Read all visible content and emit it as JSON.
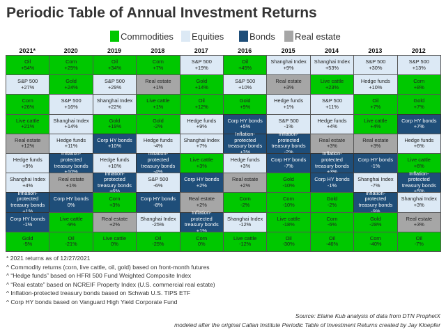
{
  "chart_data": {
    "type": "table",
    "title": "Periodic Table of Annual Investment Returns",
    "legend": [
      {
        "key": "commodities",
        "label": "Commodities",
        "color": "#00c800"
      },
      {
        "key": "equities",
        "label": "Equities",
        "color": "#dce9f5"
      },
      {
        "key": "bonds",
        "label": "Bonds",
        "color": "#1f4e79"
      },
      {
        "key": "realestate",
        "label": "Real estate",
        "color": "#a6a6a6"
      }
    ],
    "asset_category": {
      "Oil": "commodities",
      "Corn": "commodities",
      "Gold": "commodities",
      "Live cattle": "commodities",
      "S&P 500": "equities",
      "Shanghai Index": "equities",
      "Hedge funds": "equities",
      "Corp HY bonds": "bonds",
      "Inflation-protected treasury bonds": "bonds",
      "Real estate": "realestate"
    },
    "columns": [
      {
        "year": "2021*",
        "cells": [
          [
            "Oil",
            "+54%"
          ],
          [
            "S&P 500",
            "+27%"
          ],
          [
            "Corn",
            "+26%"
          ],
          [
            "Live cattle",
            "+21%"
          ],
          [
            "Real estate",
            "+12%"
          ],
          [
            "Hedge funds",
            "+9%"
          ],
          [
            "Shanghai Index",
            "+4%"
          ],
          [
            "Inflation-protected treasury bonds",
            "+1%"
          ],
          [
            "Corp HY bonds",
            "-1%"
          ],
          [
            "Gold",
            "-5%"
          ]
        ]
      },
      {
        "year": "2020",
        "cells": [
          [
            "Corn",
            "+25%"
          ],
          [
            "Gold",
            "+24%"
          ],
          [
            "S&P 500",
            "+16%"
          ],
          [
            "Shanghai Index",
            "+14%"
          ],
          [
            "Hedge funds",
            "+11%"
          ],
          [
            "Inflation-protected treasury bonds",
            "+10%"
          ],
          [
            "Real estate",
            "+1%"
          ],
          [
            "Corp HY bonds",
            "0%"
          ],
          [
            "Live cattle",
            "-9%"
          ],
          [
            "Oil",
            "-21%"
          ]
        ]
      },
      {
        "year": "2019",
        "cells": [
          [
            "Oil",
            "+34%"
          ],
          [
            "S&P 500",
            "+29%"
          ],
          [
            "Shanghai Index",
            "+22%"
          ],
          [
            "Gold",
            "+19%"
          ],
          [
            "Corp HY bonds",
            "+10%"
          ],
          [
            "Hedge funds",
            "+10%"
          ],
          [
            "Inflation-protected treasury bonds",
            "+6%"
          ],
          [
            "Corn",
            "+3%"
          ],
          [
            "Real estate",
            "+2%"
          ],
          [
            "Live cattle",
            "0%"
          ]
        ]
      },
      {
        "year": "2018",
        "cells": [
          [
            "Corn",
            "+7%"
          ],
          [
            "Real estate",
            "+1%"
          ],
          [
            "Live cattle",
            "+1%"
          ],
          [
            "Gold",
            "-2%"
          ],
          [
            "Hedge funds",
            "-4%"
          ],
          [
            "Inflation-protected treasury bonds",
            "-4%"
          ],
          [
            "S&P 500",
            "-6%"
          ],
          [
            "Corp HY bonds",
            "-8%"
          ],
          [
            "Shanghai Index",
            "-25%"
          ],
          [
            "Oil",
            "-25%"
          ]
        ]
      },
      {
        "year": "2017",
        "cells": [
          [
            "S&P 500",
            "+19%"
          ],
          [
            "Gold",
            "+14%"
          ],
          [
            "Oil",
            "+12%"
          ],
          [
            "Hedge funds",
            "+9%"
          ],
          [
            "Shanghai Index",
            "+7%"
          ],
          [
            "Live cattle",
            "+3%"
          ],
          [
            "Corp HY bonds",
            "+2%"
          ],
          [
            "Real estate",
            "+2%"
          ],
          [
            "Inflation-protected treasury bonds",
            "+1%"
          ],
          [
            "Corn",
            "0%"
          ]
        ]
      },
      {
        "year": "2016",
        "cells": [
          [
            "Oil",
            "+45%"
          ],
          [
            "S&P 500",
            "+10%"
          ],
          [
            "Gold",
            "+9%"
          ],
          [
            "Corp HY bonds",
            "+5%"
          ],
          [
            "Inflation-protected treasury bonds",
            "+3%"
          ],
          [
            "Hedge funds",
            "+3%"
          ],
          [
            "Real estate",
            "+2%"
          ],
          [
            "Corn",
            "-2%"
          ],
          [
            "Shanghai Index",
            "-12%"
          ],
          [
            "Live cattle",
            "-12%"
          ]
        ]
      },
      {
        "year": "2015",
        "cells": [
          [
            "Shanghai Index",
            "+9%"
          ],
          [
            "Real estate",
            "+3%"
          ],
          [
            "Hedge funds",
            "+1%"
          ],
          [
            "S&P 500",
            "-1%"
          ],
          [
            "Inflation-protected treasury bonds",
            "-2%"
          ],
          [
            "Corp HY bonds",
            "-7%"
          ],
          [
            "Gold",
            "-10%"
          ],
          [
            "Corn",
            "-10%"
          ],
          [
            "Live cattle",
            "-18%"
          ],
          [
            "Oil",
            "-30%"
          ]
        ]
      },
      {
        "year": "2014",
        "cells": [
          [
            "Shanghai Index",
            "+53%"
          ],
          [
            "Live cattle",
            "+23%"
          ],
          [
            "S&P 500",
            "+11%"
          ],
          [
            "Hedge funds",
            "+4%"
          ],
          [
            "Real estate",
            "+3%"
          ],
          [
            "Inflation-protected treasury bonds",
            "+3%"
          ],
          [
            "Corp HY bonds",
            "-1%"
          ],
          [
            "Gold",
            "-2%"
          ],
          [
            "Corn",
            "-6%"
          ],
          [
            "Oil",
            "-46%"
          ]
        ]
      },
      {
        "year": "2013",
        "cells": [
          [
            "S&P 500",
            "+30%"
          ],
          [
            "Hedge funds",
            "+10%"
          ],
          [
            "Oil",
            "+7%"
          ],
          [
            "Live cattle",
            "+4%"
          ],
          [
            "Real estate",
            "+3%"
          ],
          [
            "Corp HY bonds",
            "-1%"
          ],
          [
            "Shanghai Index",
            "-7%"
          ],
          [
            "Inflation-protected treasury bonds",
            "-9%"
          ],
          [
            "Gold",
            "-28%"
          ],
          [
            "Corn",
            "-40%"
          ]
        ]
      },
      {
        "year": "2012",
        "cells": [
          [
            "S&P 500",
            "+13%"
          ],
          [
            "Corn",
            "+8%"
          ],
          [
            "Gold",
            "+7%"
          ],
          [
            "Corp HY bonds",
            "+7%"
          ],
          [
            "Hedge funds",
            "+6%"
          ],
          [
            "Live cattle",
            "+6%"
          ],
          [
            "Inflation-protected treasury bonds",
            "+5%"
          ],
          [
            "Shanghai Index",
            "+3%"
          ],
          [
            "Real estate",
            "+3%"
          ],
          [
            "Oil",
            "-7%"
          ]
        ]
      }
    ],
    "footnotes": [
      "* 2021 returns as of 12/27/2021",
      "^ Commodity returns (corn, live cattle, oil, gold) based on front-month futures",
      "^ “Hedge funds” based on HFRI 500 Fund Weighted Composite Index",
      "^ “Real estate” based on NCREIF Property Index (U.S. commercial real estate)",
      "^ Inflation-protected treasury bonds based on Schwab U.S. TIPS ETF",
      "^ Corp HY bonds based on Vanguard High Yield Corporate Fund"
    ],
    "source": [
      "Source: Elaine Kub analysis of data from DTN ProphetX",
      "modeled after the original Callan Institute Periodic Table of Investment Returns created by Jay Kloepfer"
    ]
  }
}
